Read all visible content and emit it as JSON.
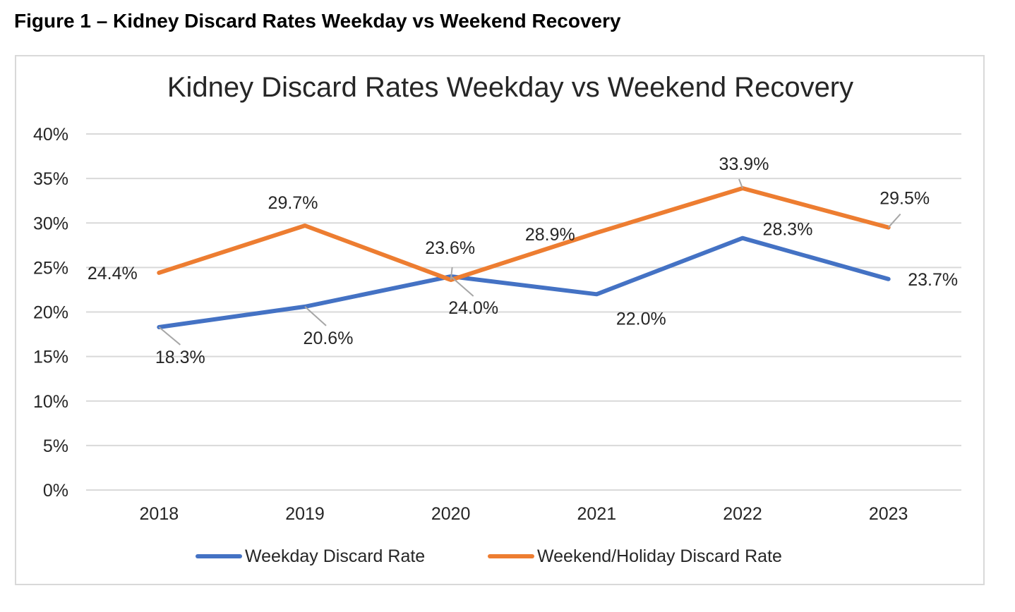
{
  "figure_caption": "Figure 1 – Kidney Discard Rates Weekday vs Weekend Recovery",
  "chart_data": {
    "type": "line",
    "title": "Kidney Discard Rates Weekday vs Weekend Recovery",
    "xlabel": "",
    "ylabel": "",
    "categories": [
      "2018",
      "2019",
      "2020",
      "2021",
      "2022",
      "2023"
    ],
    "ylim": [
      0,
      40
    ],
    "yticks": [
      "0%",
      "5%",
      "10%",
      "15%",
      "20%",
      "25%",
      "30%",
      "35%",
      "40%"
    ],
    "grid": true,
    "legend_position": "bottom",
    "series": [
      {
        "name": "Weekday Discard Rate",
        "color": "#4472c4",
        "values": [
          18.3,
          20.6,
          24.0,
          22.0,
          28.3,
          23.7
        ],
        "labels": [
          "18.3%",
          "20.6%",
          "24.0%",
          "22.0%",
          "28.3%",
          "23.7%"
        ]
      },
      {
        "name": "Weekend/Holiday Discard Rate",
        "color": "#ed7d31",
        "values": [
          24.4,
          29.7,
          23.6,
          28.9,
          33.9,
          29.5
        ],
        "labels": [
          "24.4%",
          "29.7%",
          "23.6%",
          "28.9%",
          "33.9%",
          "29.5%"
        ]
      }
    ]
  }
}
